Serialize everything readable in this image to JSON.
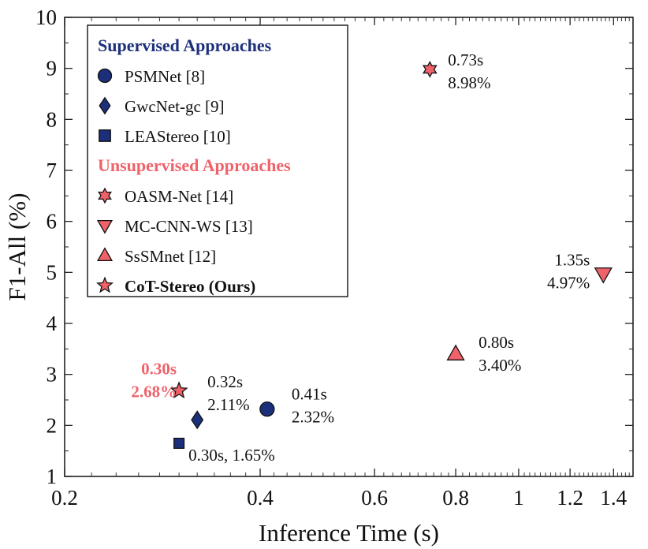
{
  "chart_data": {
    "type": "scatter",
    "xlabel": "Inference Time (s)",
    "ylabel": "F1-All (%)",
    "xscale": "log",
    "xlim": [
      0.2,
      1.5
    ],
    "ylim": [
      1,
      10
    ],
    "xticks": [
      0.2,
      0.4,
      0.6,
      0.8,
      1,
      1.2,
      1.4
    ],
    "xtick_labels": [
      "0.2",
      "0.4",
      "0.6",
      "0.8",
      "1",
      "1.2",
      "1.4"
    ],
    "yticks": [
      1,
      2,
      3,
      4,
      5,
      6,
      7,
      8,
      9,
      10
    ],
    "ytick_labels": [
      "1",
      "2",
      "3",
      "4",
      "5",
      "6",
      "7",
      "8",
      "9",
      "10"
    ],
    "colors": {
      "supervised": "#1c2f7a",
      "unsupervised": "#f0626a",
      "highlight": "#f0626a"
    },
    "legend": {
      "position": "top-left",
      "groups": [
        {
          "heading": "Supervised Approaches",
          "color": "#1c2f7a",
          "entries": [
            {
              "marker": "circle",
              "label": "PSMNet [8]"
            },
            {
              "marker": "diamond",
              "label": "GwcNet-gc [9]"
            },
            {
              "marker": "square",
              "label": "LEAStereo [10]"
            }
          ]
        },
        {
          "heading": "Unsupervised Approaches",
          "color": "#f0626a",
          "entries": [
            {
              "marker": "hexagram",
              "label": "OASM-Net [14]"
            },
            {
              "marker": "triangle-down",
              "label": "MC-CNN-WS [13]"
            },
            {
              "marker": "triangle-up",
              "label": "SsSMnet [12]"
            },
            {
              "marker": "star",
              "label": "CoT-Stereo (Ours)",
              "bold": true
            }
          ]
        }
      ]
    },
    "series": [
      {
        "name": "PSMNet [8]",
        "group": "supervised",
        "marker": "circle",
        "x": 0.41,
        "y": 2.32,
        "label_lines": [
          "0.41s",
          "2.32%"
        ]
      },
      {
        "name": "GwcNet-gc [9]",
        "group": "supervised",
        "marker": "diamond",
        "x": 0.32,
        "y": 2.11,
        "label_lines": [
          "0.32s",
          "2.11%"
        ]
      },
      {
        "name": "LEAStereo [10]",
        "group": "supervised",
        "marker": "square",
        "x": 0.3,
        "y": 1.65,
        "label_lines": [
          "0.30s, 1.65%"
        ]
      },
      {
        "name": "OASM-Net [14]",
        "group": "unsupervised",
        "marker": "hexagram",
        "x": 0.73,
        "y": 8.98,
        "label_lines": [
          "0.73s",
          "8.98%"
        ]
      },
      {
        "name": "MC-CNN-WS [13]",
        "group": "unsupervised",
        "marker": "triangle-down",
        "x": 1.35,
        "y": 4.97,
        "label_lines": [
          "1.35s",
          "4.97%"
        ]
      },
      {
        "name": "SsSMnet [12]",
        "group": "unsupervised",
        "marker": "triangle-up",
        "x": 0.8,
        "y": 3.4,
        "label_lines": [
          "0.80s",
          "3.40%"
        ]
      },
      {
        "name": "CoT-Stereo (Ours)",
        "group": "unsupervised",
        "marker": "star",
        "x": 0.3,
        "y": 2.68,
        "label_lines": [
          "0.30s",
          "2.68%"
        ],
        "highlight": true
      }
    ]
  }
}
